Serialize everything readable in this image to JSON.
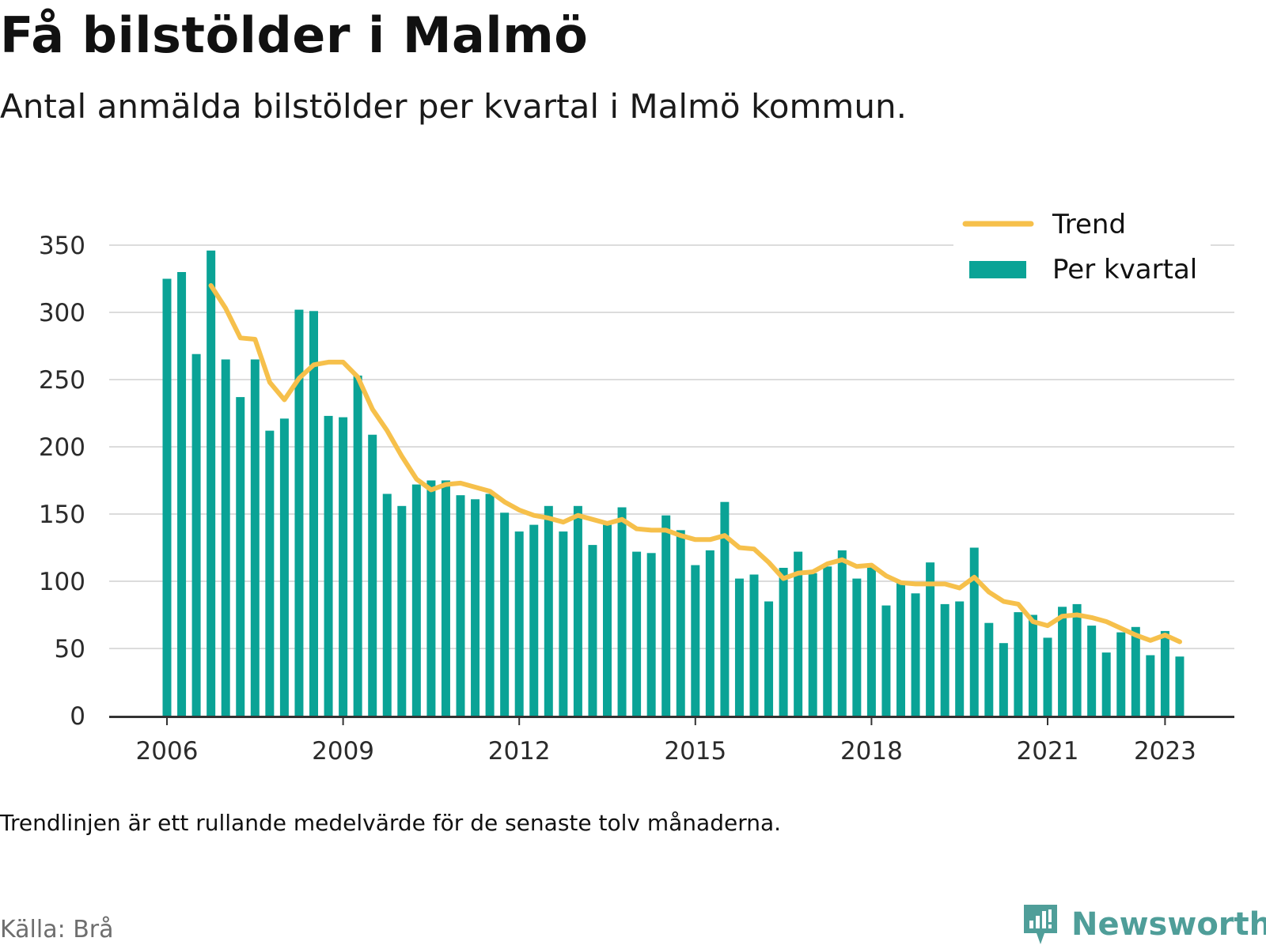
{
  "title": "Få bilstölder i Malmö",
  "subtitle": "Antal anmälda bilstölder per kvartal i Malmö kommun.",
  "note": "Trendlinjen är ett rullande medelvärde för de senaste tolv månaderna.",
  "source": "Källa: Brå",
  "brand": "Newsworthy",
  "colors": {
    "bars": "#0aa396",
    "trend": "#f6c04b",
    "grid": "#dcdcdc",
    "axis": "#333333"
  },
  "chart_data": {
    "type": "bar",
    "x_start_year": 2006,
    "quarters_per_year": 4,
    "ylim": [
      0,
      350
    ],
    "yticks": [
      0,
      50,
      100,
      150,
      200,
      250,
      300,
      350
    ],
    "xticks": [
      "2006",
      "2009",
      "2012",
      "2015",
      "2018",
      "2021",
      "2023"
    ],
    "legend_position": "top-right",
    "grid": true,
    "series": [
      {
        "name": "Per kvartal",
        "type": "bar",
        "values": [
          325,
          330,
          269,
          346,
          265,
          237,
          265,
          212,
          221,
          302,
          301,
          223,
          222,
          253,
          209,
          165,
          156,
          172,
          175,
          175,
          164,
          161,
          165,
          151,
          137,
          142,
          156,
          137,
          156,
          127,
          142,
          155,
          122,
          121,
          149,
          138,
          112,
          123,
          159,
          102,
          105,
          85,
          110,
          122,
          106,
          111,
          123,
          102,
          111,
          82,
          99,
          91,
          114,
          83,
          85,
          125,
          69,
          54,
          77,
          75,
          58,
          81,
          83,
          67,
          47,
          62,
          66,
          45,
          63,
          44
        ]
      },
      {
        "name": "Trend",
        "type": "line",
        "start_index": 3,
        "values": [
          320,
          303,
          281,
          280,
          248,
          235,
          251,
          261,
          263,
          263,
          252,
          228,
          212,
          193,
          176,
          168,
          172,
          173,
          170,
          167,
          159,
          153,
          149,
          147,
          144,
          149,
          146,
          143,
          146,
          139,
          138,
          138,
          134,
          131,
          131,
          134,
          125,
          124,
          114,
          102,
          106,
          107,
          113,
          116,
          111,
          112,
          104,
          99,
          98,
          98,
          98,
          95,
          103,
          92,
          85,
          83,
          70,
          67,
          74,
          75,
          73,
          70,
          65,
          60,
          56,
          60,
          55
        ]
      }
    ]
  }
}
